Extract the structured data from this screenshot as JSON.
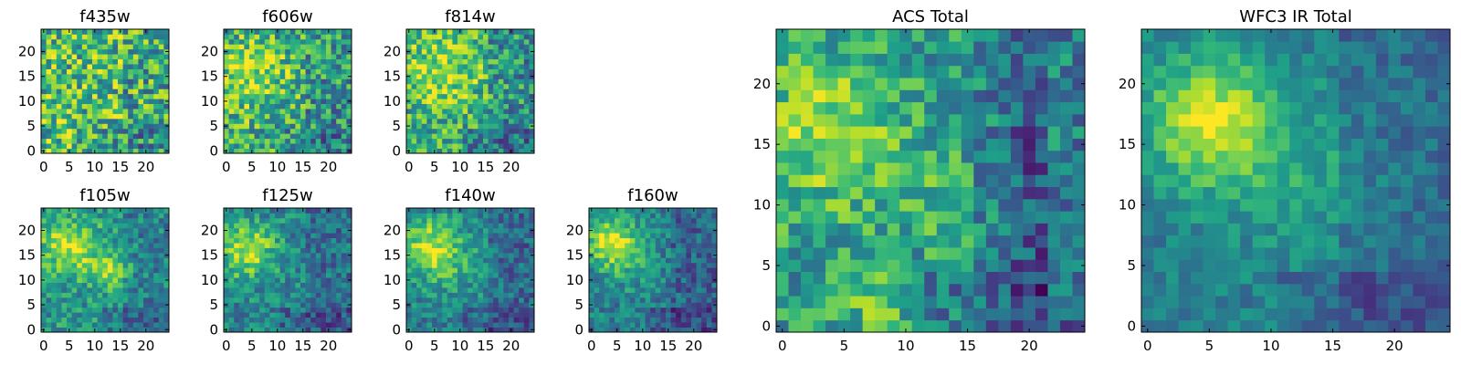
{
  "chart_data": [
    {
      "type": "heatmap",
      "title": "f435w",
      "colormap": "viridis",
      "xlim": [
        0,
        24
      ],
      "ylim": [
        0,
        24
      ],
      "xticks": [
        0,
        5,
        10,
        15,
        20
      ],
      "yticks": [
        0,
        5,
        10,
        15,
        20
      ],
      "x_tick_labels": [
        "0",
        "5",
        "10",
        "15",
        "20"
      ],
      "y_tick_labels": [
        "0",
        "5",
        "10",
        "15",
        "20"
      ],
      "blobs": [],
      "noise": 0.34,
      "base": 0.68,
      "dark_columns": []
    },
    {
      "type": "heatmap",
      "title": "f606w",
      "colormap": "viridis",
      "xlim": [
        0,
        24
      ],
      "ylim": [
        0,
        24
      ],
      "xticks": [
        0,
        5,
        10,
        15,
        20
      ],
      "yticks": [
        0,
        5,
        10,
        15,
        20
      ],
      "x_tick_labels": [
        "0",
        "5",
        "10",
        "15",
        "20"
      ],
      "y_tick_labels": [
        "0",
        "5",
        "10",
        "15",
        "20"
      ],
      "blobs": [
        {
          "x": 5,
          "y": 15,
          "sigma": 5,
          "amp": 0.3
        }
      ],
      "noise": 0.3,
      "base": 0.6,
      "dark_columns": []
    },
    {
      "type": "heatmap",
      "title": "f814w",
      "colormap": "viridis",
      "xlim": [
        0,
        24
      ],
      "ylim": [
        0,
        24
      ],
      "xticks": [
        0,
        5,
        10,
        15,
        20
      ],
      "yticks": [
        0,
        5,
        10,
        15,
        20
      ],
      "x_tick_labels": [
        "0",
        "5",
        "10",
        "15",
        "20"
      ],
      "y_tick_labels": [
        "0",
        "5",
        "10",
        "15",
        "20"
      ],
      "blobs": [
        {
          "x": 6,
          "y": 16,
          "sigma": 6,
          "amp": 0.3
        }
      ],
      "noise": 0.28,
      "base": 0.58,
      "dark_columns": []
    },
    {
      "type": "heatmap",
      "title": "f105w",
      "colormap": "viridis",
      "xlim": [
        0,
        24
      ],
      "ylim": [
        0,
        24
      ],
      "xticks": [
        0,
        5,
        10,
        15,
        20
      ],
      "yticks": [
        0,
        5,
        10,
        15,
        20
      ],
      "x_tick_labels": [
        "0",
        "5",
        "10",
        "15",
        "20"
      ],
      "y_tick_labels": [
        "0",
        "5",
        "10",
        "15",
        "20"
      ],
      "blobs": [
        {
          "x": 5,
          "y": 17,
          "sigma": 4,
          "amp": 0.4
        },
        {
          "x": 13,
          "y": 12,
          "sigma": 3,
          "amp": 0.25
        }
      ],
      "noise": 0.2,
      "base": 0.52,
      "dark_columns": []
    },
    {
      "type": "heatmap",
      "title": "f125w",
      "colormap": "viridis",
      "xlim": [
        0,
        24
      ],
      "ylim": [
        0,
        24
      ],
      "xticks": [
        0,
        5,
        10,
        15,
        20
      ],
      "yticks": [
        0,
        5,
        10,
        15,
        20
      ],
      "x_tick_labels": [
        "0",
        "5",
        "10",
        "15",
        "20"
      ],
      "y_tick_labels": [
        "0",
        "5",
        "10",
        "15",
        "20"
      ],
      "blobs": [
        {
          "x": 4,
          "y": 16,
          "sigma": 4,
          "amp": 0.45
        }
      ],
      "noise": 0.2,
      "base": 0.45,
      "dark_columns": []
    },
    {
      "type": "heatmap",
      "title": "f140w",
      "colormap": "viridis",
      "xlim": [
        0,
        24
      ],
      "ylim": [
        0,
        24
      ],
      "xticks": [
        0,
        5,
        10,
        15,
        20
      ],
      "yticks": [
        0,
        5,
        10,
        15,
        20
      ],
      "x_tick_labels": [
        "0",
        "5",
        "10",
        "15",
        "20"
      ],
      "y_tick_labels": [
        "0",
        "5",
        "10",
        "15",
        "20"
      ],
      "blobs": [
        {
          "x": 4,
          "y": 17,
          "sigma": 4,
          "amp": 0.45
        },
        {
          "x": 9,
          "y": 12,
          "sigma": 5,
          "amp": 0.15
        }
      ],
      "noise": 0.18,
      "base": 0.42,
      "dark_columns": []
    },
    {
      "type": "heatmap",
      "title": "f160w",
      "colormap": "viridis",
      "xlim": [
        0,
        24
      ],
      "ylim": [
        0,
        24
      ],
      "xticks": [
        0,
        5,
        10,
        15,
        20
      ],
      "yticks": [
        0,
        5,
        10,
        15,
        20
      ],
      "x_tick_labels": [
        "0",
        "5",
        "10",
        "15",
        "20"
      ],
      "y_tick_labels": [
        "0",
        "5",
        "10",
        "15",
        "20"
      ],
      "blobs": [
        {
          "x": 4,
          "y": 18,
          "sigma": 3.5,
          "amp": 0.5
        },
        {
          "x": 7,
          "y": 13,
          "sigma": 5,
          "amp": 0.15
        }
      ],
      "noise": 0.18,
      "base": 0.4,
      "dark_columns": []
    },
    {
      "type": "heatmap",
      "title": "ACS Total",
      "colormap": "viridis",
      "xlim": [
        0,
        24
      ],
      "ylim": [
        0,
        24
      ],
      "xticks": [
        0,
        5,
        10,
        15,
        20
      ],
      "yticks": [
        0,
        5,
        10,
        15,
        20
      ],
      "x_tick_labels": [
        "0",
        "5",
        "10",
        "15",
        "20"
      ],
      "y_tick_labels": [
        "0",
        "5",
        "10",
        "15",
        "20"
      ],
      "blobs": [
        {
          "x": 3,
          "y": 16,
          "sigma": 5,
          "amp": 0.3
        },
        {
          "x": 12,
          "y": 11,
          "sigma": 3,
          "amp": 0.12
        },
        {
          "x": 7,
          "y": 2,
          "sigma": 2.5,
          "amp": 0.18
        }
      ],
      "noise": 0.22,
      "base": 0.52,
      "dark_columns": [
        19,
        20,
        21
      ]
    },
    {
      "type": "heatmap",
      "title": "WFC3 IR Total",
      "colormap": "viridis",
      "xlim": [
        0,
        24
      ],
      "ylim": [
        0,
        24
      ],
      "xticks": [
        0,
        5,
        10,
        15,
        20
      ],
      "yticks": [
        0,
        5,
        10,
        15,
        20
      ],
      "x_tick_labels": [
        "0",
        "5",
        "10",
        "15",
        "20"
      ],
      "y_tick_labels": [
        "0",
        "5",
        "10",
        "15",
        "20"
      ],
      "blobs": [
        {
          "x": 5,
          "y": 17,
          "sigma": 3.8,
          "amp": 0.5
        },
        {
          "x": 13,
          "y": 12,
          "sigma": 5,
          "amp": 0.15
        }
      ],
      "noise": 0.12,
      "base": 0.42,
      "dark_columns": []
    }
  ]
}
